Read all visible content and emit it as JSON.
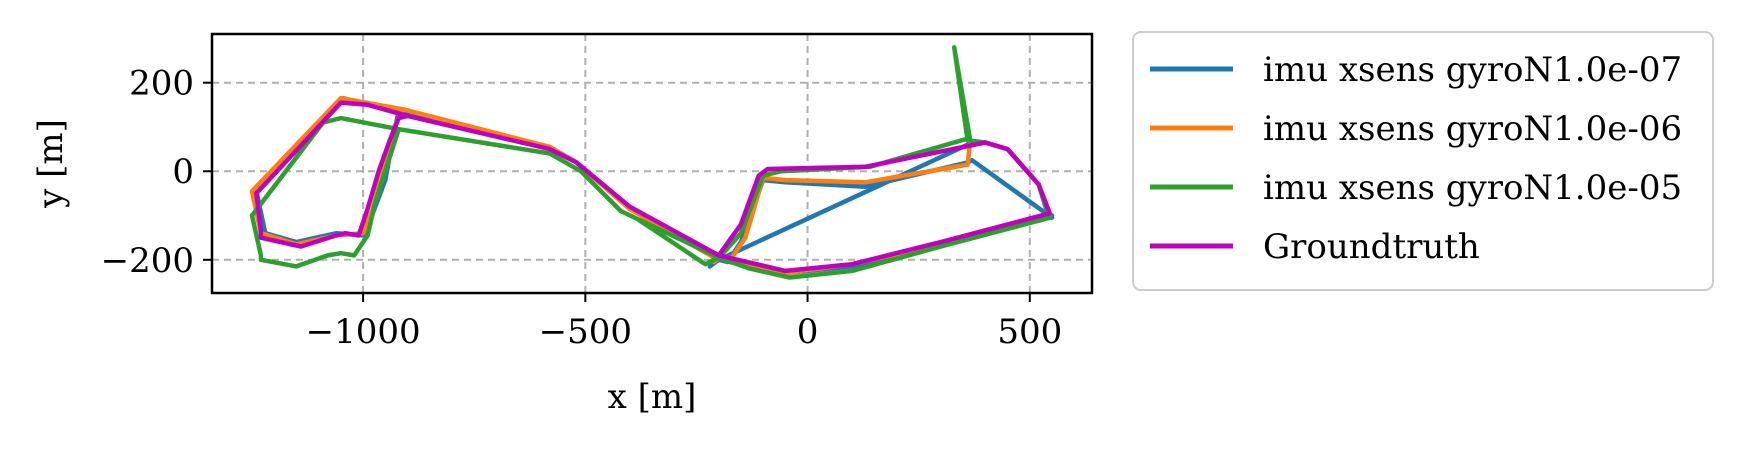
{
  "chart_data": {
    "type": "line",
    "xlabel": "x [m]",
    "ylabel": "y [m]",
    "xlim": [
      -1340,
      640
    ],
    "ylim": [
      -275,
      310
    ],
    "xticks": [
      -1000,
      -500,
      0,
      500
    ],
    "xtick_labels": [
      "−1000",
      "−500",
      "0",
      "500"
    ],
    "yticks": [
      -200,
      0,
      200
    ],
    "ytick_labels": [
      "−200",
      "0",
      "200"
    ],
    "grid": true,
    "grid_style": "dashed",
    "legend_position": "outside right, top",
    "series": [
      {
        "name": "imu xsens gyroN1.0e-07",
        "color": "#1f77b4",
        "points": [
          [
            -1240,
            -45
          ],
          [
            -1045,
            165
          ],
          [
            -920,
            135
          ],
          [
            -580,
            55
          ],
          [
            -520,
            20
          ],
          [
            -400,
            -85
          ],
          [
            -200,
            -200
          ],
          [
            -180,
            -205
          ],
          [
            -150,
            -160
          ],
          [
            -100,
            -20
          ],
          [
            -50,
            -25
          ],
          [
            130,
            -35
          ],
          [
            360,
            20
          ],
          [
            370,
            25
          ],
          [
            550,
            -105
          ],
          [
            540,
            -95
          ],
          [
            520,
            -30
          ],
          [
            450,
            50
          ],
          [
            400,
            65
          ],
          [
            360,
            60
          ],
          [
            -200,
            -200
          ],
          [
            -220,
            -215
          ],
          [
            -200,
            -200
          ],
          [
            -50,
            -230
          ],
          [
            100,
            -215
          ],
          [
            300,
            -165
          ],
          [
            540,
            -105
          ],
          [
            550,
            -100
          ]
        ]
      },
      {
        "name": "imu xsens gyroN1.0e-06",
        "color": "#ff7f0e",
        "points": [
          [
            -1250,
            -45
          ],
          [
            -1050,
            165
          ],
          [
            -910,
            140
          ],
          [
            -580,
            55
          ],
          [
            -520,
            20
          ],
          [
            -400,
            -85
          ],
          [
            -210,
            -195
          ],
          [
            -170,
            -195
          ],
          [
            -140,
            -150
          ],
          [
            -100,
            -15
          ],
          [
            -50,
            -20
          ],
          [
            130,
            -25
          ],
          [
            360,
            15
          ],
          [
            365,
            60
          ],
          [
            400,
            65
          ],
          [
            450,
            50
          ],
          [
            520,
            -30
          ],
          [
            540,
            -90
          ],
          [
            545,
            -105
          ],
          [
            300,
            -165
          ],
          [
            100,
            -210
          ],
          [
            -50,
            -230
          ],
          [
            -200,
            -195
          ],
          [
            -210,
            -205
          ]
        ]
      },
      {
        "name": "imu xsens gyroN1.0e-05",
        "color": "#2ca02c",
        "points": [
          [
            -1250,
            -100
          ],
          [
            -1090,
            110
          ],
          [
            -1050,
            120
          ],
          [
            -920,
            95
          ],
          [
            -580,
            40
          ],
          [
            -510,
            0
          ],
          [
            -420,
            -90
          ],
          [
            -200,
            -195
          ],
          [
            -130,
            -220
          ],
          [
            -40,
            -240
          ],
          [
            100,
            -225
          ],
          [
            300,
            -170
          ],
          [
            545,
            -105
          ],
          [
            540,
            -95
          ],
          [
            520,
            -30
          ],
          [
            450,
            50
          ],
          [
            400,
            65
          ],
          [
            360,
            70
          ],
          [
            330,
            280
          ],
          [
            365,
            75
          ],
          [
            140,
            10
          ],
          [
            -60,
            0
          ],
          [
            -100,
            -10
          ],
          [
            -150,
            -140
          ],
          [
            -190,
            -185
          ],
          [
            -200,
            -195
          ],
          [
            -230,
            -210
          ],
          [
            -380,
            -110
          ]
        ]
      },
      {
        "name": "Groundtruth",
        "color": "#c000c0",
        "points": [
          [
            -1240,
            -50
          ],
          [
            -1050,
            155
          ],
          [
            -990,
            150
          ],
          [
            -900,
            125
          ],
          [
            -580,
            50
          ],
          [
            -520,
            20
          ],
          [
            -400,
            -80
          ],
          [
            -200,
            -190
          ],
          [
            -150,
            -120
          ],
          [
            -110,
            -10
          ],
          [
            -90,
            5
          ],
          [
            130,
            10
          ],
          [
            400,
            65
          ],
          [
            450,
            50
          ],
          [
            520,
            -30
          ],
          [
            545,
            -95
          ],
          [
            300,
            -160
          ],
          [
            100,
            -210
          ],
          [
            -50,
            -225
          ],
          [
            -200,
            -190
          ]
        ]
      }
    ],
    "extra_segments": {
      "imu xsens gyroN1.0e-05": [
        [
          -1250,
          -100
        ],
        [
          -1230,
          -190
        ],
        [
          -1230,
          -200
        ],
        [
          -1150,
          -215
        ],
        [
          -1080,
          -190
        ],
        [
          -1050,
          -185
        ],
        [
          -1020,
          -190
        ],
        [
          -990,
          -145
        ],
        [
          -975,
          -80
        ],
        [
          -960,
          -30
        ],
        [
          -920,
          95
        ]
      ],
      "Groundtruth": [
        [
          -1240,
          -50
        ],
        [
          -1230,
          -135
        ],
        [
          -1230,
          -150
        ],
        [
          -1140,
          -170
        ],
        [
          -1060,
          -145
        ],
        [
          -1040,
          -140
        ],
        [
          -1010,
          -145
        ],
        [
          -990,
          -85
        ],
        [
          -965,
          0
        ],
        [
          -940,
          70
        ],
        [
          -920,
          120
        ],
        [
          -900,
          125
        ]
      ],
      "imu xsens gyroN1.0e-07": [
        [
          -1240,
          -45
        ],
        [
          -1220,
          -140
        ],
        [
          -1150,
          -160
        ],
        [
          -1060,
          -140
        ],
        [
          -1000,
          -145
        ],
        [
          -980,
          -100
        ],
        [
          -950,
          -20
        ],
        [
          -930,
          90
        ],
        [
          -920,
          135
        ]
      ],
      "imu xsens gyroN1.0e-06": [
        [
          -1250,
          -45
        ],
        [
          -1230,
          -140
        ],
        [
          -1150,
          -165
        ],
        [
          -1060,
          -145
        ],
        [
          -1000,
          -140
        ],
        [
          -980,
          -90
        ],
        [
          -955,
          0
        ],
        [
          -930,
          100
        ],
        [
          -910,
          140
        ]
      ]
    }
  }
}
